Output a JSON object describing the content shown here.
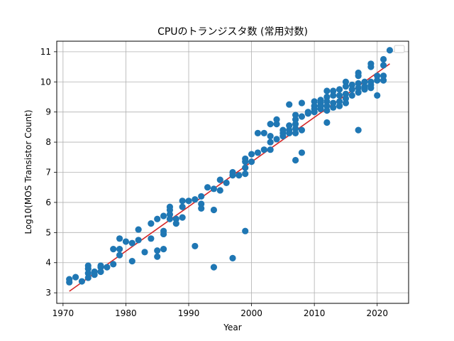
{
  "chart_data": {
    "type": "scatter",
    "title": "CPUのトランジスタ数 (常用対数)",
    "xlabel": "Year",
    "ylabel": "Log10(MOS Transistor Count)",
    "xlim": [
      1969,
      2025
    ],
    "ylim": [
      2.65,
      11.35
    ],
    "xticks": [
      1970,
      1980,
      1990,
      2000,
      2010,
      2020
    ],
    "yticks": [
      3,
      4,
      5,
      6,
      7,
      8,
      9,
      10,
      11
    ],
    "grid": true,
    "legend": "top-right (empty)",
    "colors": {
      "points": "#1f77b4",
      "trend": "#d62728",
      "grid": "#b0b0b0"
    },
    "trend": {
      "x": [
        1971,
        2022
      ],
      "y": [
        3.05,
        10.6
      ]
    },
    "series": [
      {
        "points": [
          [
            1971,
            3.45
          ],
          [
            1971,
            3.35
          ],
          [
            1972,
            3.52
          ],
          [
            1973,
            3.38
          ],
          [
            1974,
            3.9
          ],
          [
            1974,
            3.8
          ],
          [
            1974,
            3.65
          ],
          [
            1974,
            3.5
          ],
          [
            1975,
            3.7
          ],
          [
            1975,
            3.6
          ],
          [
            1976,
            3.9
          ],
          [
            1976,
            3.85
          ],
          [
            1976,
            3.7
          ],
          [
            1977,
            3.85
          ],
          [
            1978,
            4.45
          ],
          [
            1978,
            3.95
          ],
          [
            1979,
            4.8
          ],
          [
            1979,
            4.45
          ],
          [
            1979,
            4.25
          ],
          [
            1980,
            4.7
          ],
          [
            1981,
            4.65
          ],
          [
            1981,
            4.05
          ],
          [
            1982,
            5.1
          ],
          [
            1982,
            4.75
          ],
          [
            1983,
            4.35
          ],
          [
            1984,
            5.3
          ],
          [
            1984,
            4.8
          ],
          [
            1985,
            5.45
          ],
          [
            1985,
            4.4
          ],
          [
            1985,
            4.2
          ],
          [
            1986,
            5.55
          ],
          [
            1986,
            5.05
          ],
          [
            1986,
            4.95
          ],
          [
            1986,
            4.45
          ],
          [
            1987,
            5.85
          ],
          [
            1987,
            5.75
          ],
          [
            1987,
            5.6
          ],
          [
            1987,
            5.45
          ],
          [
            1988,
            5.45
          ],
          [
            1988,
            5.3
          ],
          [
            1989,
            6.05
          ],
          [
            1989,
            5.85
          ],
          [
            1989,
            5.5
          ],
          [
            1990,
            6.05
          ],
          [
            1991,
            6.1
          ],
          [
            1991,
            4.55
          ],
          [
            1992,
            6.2
          ],
          [
            1992,
            5.95
          ],
          [
            1992,
            5.8
          ],
          [
            1993,
            6.5
          ],
          [
            1994,
            6.45
          ],
          [
            1994,
            5.75
          ],
          [
            1994,
            3.85
          ],
          [
            1995,
            6.75
          ],
          [
            1995,
            6.4
          ],
          [
            1996,
            6.65
          ],
          [
            1997,
            7.0
          ],
          [
            1997,
            6.9
          ],
          [
            1997,
            4.15
          ],
          [
            1998,
            6.9
          ],
          [
            1999,
            7.45
          ],
          [
            1999,
            7.35
          ],
          [
            1999,
            7.15
          ],
          [
            1999,
            6.95
          ],
          [
            1999,
            5.05
          ],
          [
            2000,
            7.6
          ],
          [
            2000,
            7.35
          ],
          [
            2001,
            8.3
          ],
          [
            2001,
            7.65
          ],
          [
            2002,
            8.3
          ],
          [
            2002,
            7.75
          ],
          [
            2003,
            8.6
          ],
          [
            2003,
            8.2
          ],
          [
            2003,
            8.0
          ],
          [
            2003,
            7.75
          ],
          [
            2004,
            8.75
          ],
          [
            2004,
            8.6
          ],
          [
            2004,
            8.1
          ],
          [
            2005,
            8.4
          ],
          [
            2005,
            8.3
          ],
          [
            2005,
            8.2
          ],
          [
            2006,
            9.25
          ],
          [
            2006,
            8.55
          ],
          [
            2006,
            8.4
          ],
          [
            2006,
            8.3
          ],
          [
            2007,
            8.9
          ],
          [
            2007,
            8.75
          ],
          [
            2007,
            8.6
          ],
          [
            2007,
            8.45
          ],
          [
            2007,
            8.3
          ],
          [
            2007,
            7.4
          ],
          [
            2008,
            9.3
          ],
          [
            2008,
            8.85
          ],
          [
            2008,
            8.4
          ],
          [
            2008,
            7.65
          ],
          [
            2009,
            8.95
          ],
          [
            2009,
            9.0
          ],
          [
            2010,
            9.35
          ],
          [
            2010,
            9.2
          ],
          [
            2010,
            9.1
          ],
          [
            2010,
            9.0
          ],
          [
            2011,
            9.4
          ],
          [
            2011,
            9.3
          ],
          [
            2011,
            9.1
          ],
          [
            2011,
            9.2
          ],
          [
            2012,
            9.7
          ],
          [
            2012,
            9.5
          ],
          [
            2012,
            9.35
          ],
          [
            2012,
            9.2
          ],
          [
            2012,
            9.05
          ],
          [
            2012,
            8.65
          ],
          [
            2013,
            9.7
          ],
          [
            2013,
            9.55
          ],
          [
            2013,
            9.3
          ],
          [
            2013,
            9.15
          ],
          [
            2014,
            9.75
          ],
          [
            2014,
            9.55
          ],
          [
            2014,
            9.35
          ],
          [
            2014,
            9.2
          ],
          [
            2015,
            10.0
          ],
          [
            2015,
            9.85
          ],
          [
            2015,
            9.6
          ],
          [
            2015,
            9.45
          ],
          [
            2015,
            9.3
          ],
          [
            2016,
            9.9
          ],
          [
            2016,
            9.75
          ],
          [
            2016,
            9.55
          ],
          [
            2017,
            10.3
          ],
          [
            2017,
            10.2
          ],
          [
            2017,
            9.95
          ],
          [
            2017,
            9.8
          ],
          [
            2017,
            9.65
          ],
          [
            2017,
            8.4
          ],
          [
            2018,
            10.0
          ],
          [
            2018,
            9.85
          ],
          [
            2018,
            9.75
          ],
          [
            2019,
            10.6
          ],
          [
            2019,
            10.5
          ],
          [
            2019,
            10.0
          ],
          [
            2019,
            9.9
          ],
          [
            2019,
            9.8
          ],
          [
            2020,
            10.2
          ],
          [
            2020,
            10.05
          ],
          [
            2020,
            9.55
          ],
          [
            2021,
            10.75
          ],
          [
            2021,
            10.55
          ],
          [
            2021,
            10.2
          ],
          [
            2021,
            10.05
          ],
          [
            2022,
            11.05
          ]
        ]
      }
    ]
  }
}
